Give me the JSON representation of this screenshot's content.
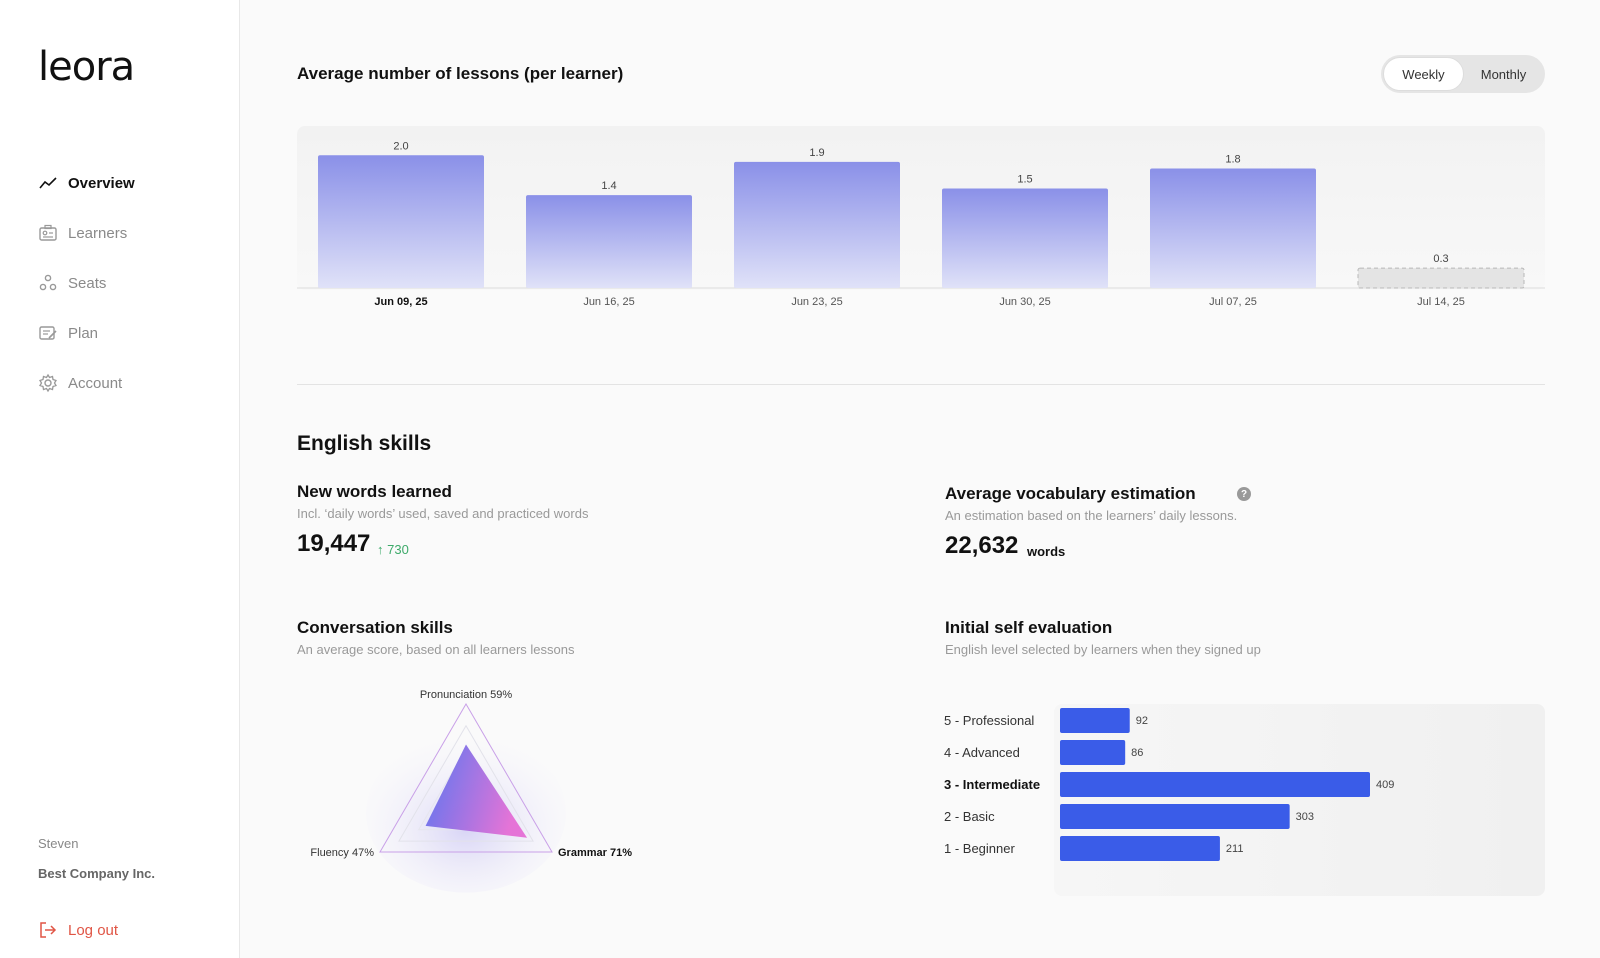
{
  "app": {
    "logo": "leora"
  },
  "sidebar": {
    "items": [
      {
        "label": "Overview",
        "icon": "trend-line-icon",
        "active": true
      },
      {
        "label": "Learners",
        "icon": "id-card-icon",
        "active": false
      },
      {
        "label": "Seats",
        "icon": "seats-icon",
        "active": false
      },
      {
        "label": "Plan",
        "icon": "plan-icon",
        "active": false
      },
      {
        "label": "Account",
        "icon": "gear-icon",
        "active": false
      }
    ],
    "user_name": "Steven",
    "company": "Best Company Inc.",
    "logout_label": "Log out"
  },
  "lessons": {
    "title": "Average number of lessons (per learner)",
    "toggle": {
      "weekly": "Weekly",
      "monthly": "Monthly",
      "selected": "weekly"
    }
  },
  "skills": {
    "section_title": "English skills",
    "new_words": {
      "title": "New words learned",
      "subtitle": "Incl. ‘daily words’ used, saved and practiced words",
      "value": "19,447",
      "delta": "↑ 730"
    },
    "vocab": {
      "title": "Average vocabulary estimation",
      "subtitle": "An estimation based on the learners’ daily lessons.",
      "value": "22,632",
      "unit": "words",
      "help": "?"
    },
    "conversation": {
      "title": "Conversation skills",
      "subtitle": "An average score, based on all learners lessons"
    },
    "self_eval": {
      "title": "Initial self evaluation",
      "subtitle": "English level selected by learners when they signed up"
    }
  },
  "chart_data": [
    {
      "type": "bar",
      "categories": [
        "Jun 09, 25",
        "Jun 16, 25",
        "Jun 23, 25",
        "Jun 30, 25",
        "Jul 07, 25",
        "Jul 14, 25"
      ],
      "values": [
        2.0,
        1.4,
        1.9,
        1.5,
        1.8,
        0.3
      ],
      "value_labels": [
        "2.0",
        "1.4",
        "1.9",
        "1.5",
        "1.8",
        "0.3"
      ],
      "highlight_category": "Jun 09, 25",
      "partial_category": "Jul 14, 25",
      "ylim": [
        0,
        2.2
      ],
      "grid": false,
      "colors": {
        "bar_top": "#8a90e8",
        "bar_bottom": "#e0e2f8",
        "partial": "#e4e4e4"
      }
    },
    {
      "type": "radar",
      "axes": [
        {
          "label": "Pronunciation",
          "value": 59,
          "value_label": "59%"
        },
        {
          "label": "Grammar",
          "value": 71,
          "value_label": "71%"
        },
        {
          "label": "Fluency",
          "value": 47,
          "value_label": "47%"
        }
      ],
      "max": 100,
      "colors": {
        "fill_a": "#4a6cf0",
        "fill_b": "#e46ad4"
      }
    },
    {
      "type": "bar",
      "orientation": "horizontal",
      "categories": [
        "5 - Professional",
        "4 - Advanced",
        "3 - Intermediate",
        "2 - Basic",
        "1 - Beginner"
      ],
      "values": [
        92,
        86,
        409,
        303,
        211
      ],
      "value_labels": [
        "92",
        "86",
        "409",
        "303",
        "211"
      ],
      "highlight_category": "3 - Intermediate",
      "colors": {
        "bar": "#3a5ce8"
      }
    }
  ]
}
